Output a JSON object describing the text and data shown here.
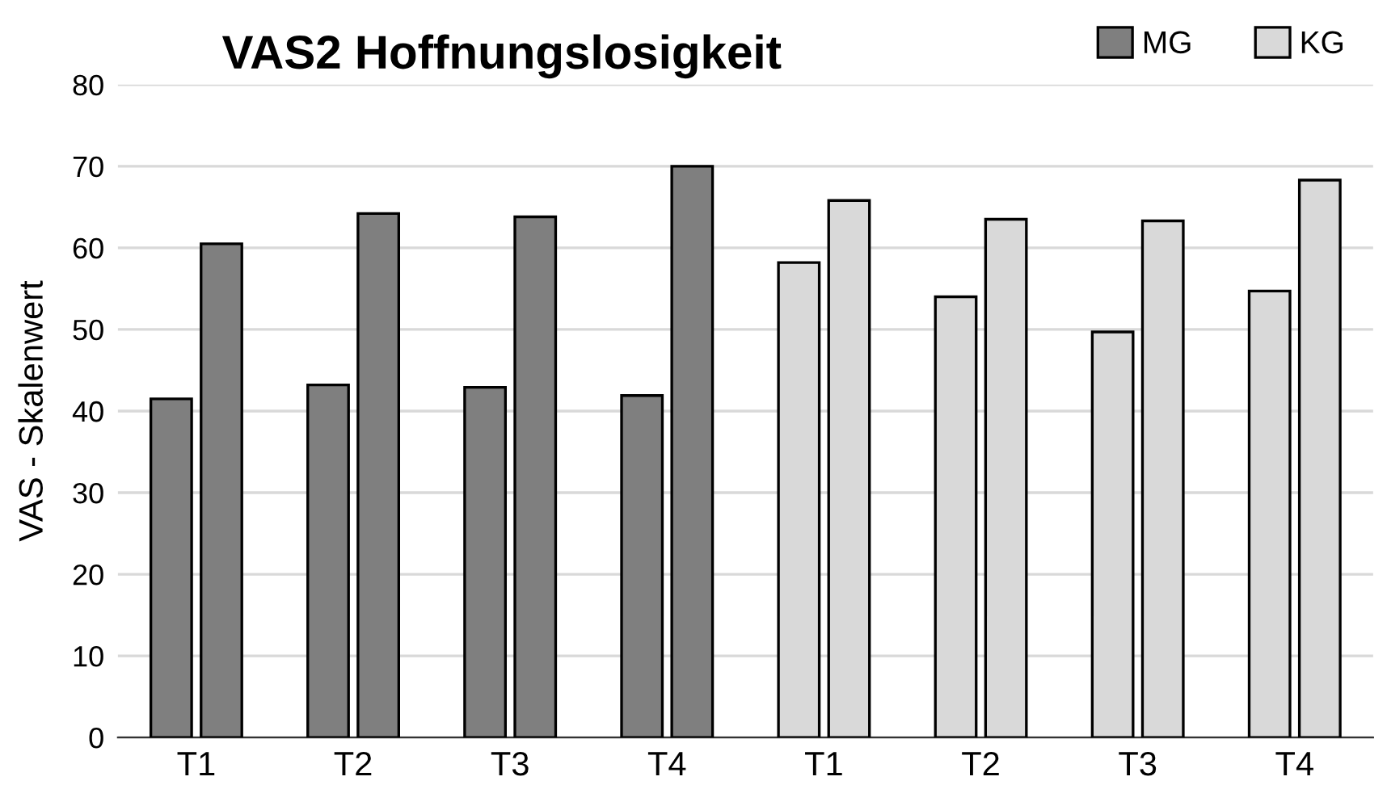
{
  "chart_data": {
    "type": "bar",
    "title": "VAS2 Hoffnungslosigkeit",
    "ylabel": "VAS - Skalenwert",
    "categories": [
      "T1",
      "T2",
      "T3",
      "T4",
      "T1",
      "T2",
      "T3",
      "T4"
    ],
    "series": [
      {
        "name": "MG",
        "color": "#7f7f7f",
        "values": [
          41.5,
          43.2,
          42.9,
          41.9,
          null,
          null,
          null,
          null
        ]
      },
      {
        "color": "#7f7f7f",
        "values": [
          60.5,
          64.2,
          63.8,
          70.0,
          null,
          null,
          null,
          null
        ]
      },
      {
        "name": "KG",
        "color": "#d9d9d9",
        "values": [
          null,
          null,
          null,
          null,
          58.2,
          54.0,
          49.7,
          54.7
        ]
      },
      {
        "color": "#d9d9d9",
        "values": [
          null,
          null,
          null,
          null,
          65.8,
          63.5,
          63.3,
          68.3
        ]
      }
    ],
    "ylim": [
      0,
      80
    ],
    "yticks": [
      0,
      10,
      20,
      30,
      40,
      50,
      60,
      70,
      80
    ],
    "grid": "y",
    "legend": "top right"
  }
}
